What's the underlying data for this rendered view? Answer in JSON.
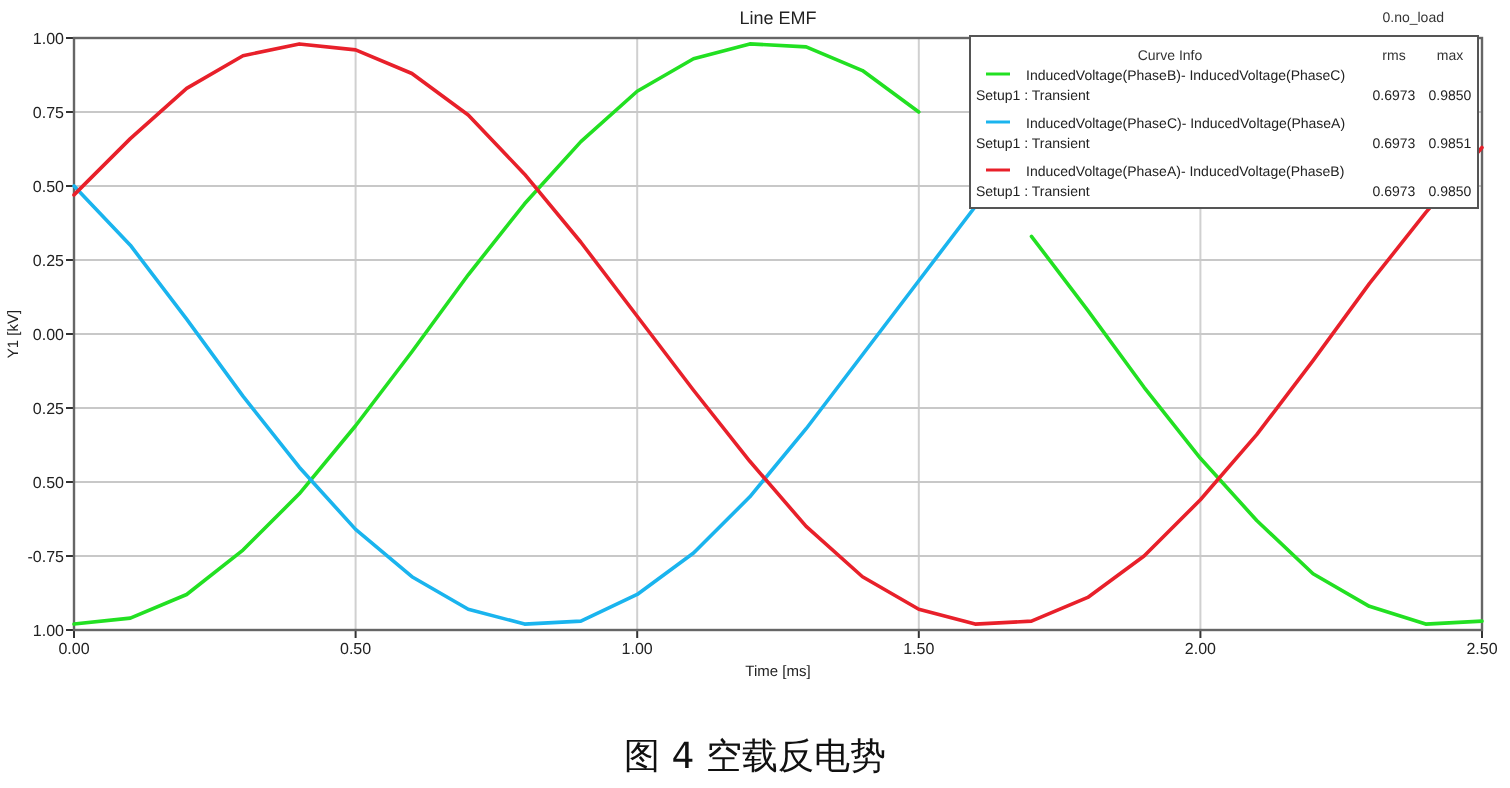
{
  "chart_data": {
    "type": "line",
    "title": "Line EMF",
    "xlabel": "Time [ms]",
    "ylabel": "Y1 [kV]",
    "legend_title": "Curve Info",
    "legend": "top right",
    "grid": true,
    "line_style": "solid",
    "x": [
      0,
      0.1,
      0.2,
      0.3,
      0.4,
      0.5,
      0.6,
      0.7,
      0.8,
      0.9,
      1.0,
      1.1,
      1.2,
      1.3,
      1.4,
      1.5,
      1.6,
      1.7,
      1.8,
      1.9,
      2.0,
      2.1,
      2.2,
      2.3,
      2.4,
      2.5
    ],
    "xlim": [
      0,
      2.5
    ],
    "xticks": [
      {
        "value": 0,
        "label": "0.00"
      },
      {
        "value": 0.5,
        "label": "0.50"
      },
      {
        "value": 1,
        "label": "1.00"
      },
      {
        "value": 1.5,
        "label": "1.50"
      },
      {
        "value": 2,
        "label": "2.00"
      },
      {
        "value": 2.5,
        "label": "2.50"
      }
    ],
    "ylim": [
      -1,
      1
    ],
    "yticks": [
      {
        "value": 1,
        "label": "1.00"
      },
      {
        "value": 0.75,
        "label": "0.75"
      },
      {
        "value": 0.5,
        "label": "0.50"
      },
      {
        "value": 0.25,
        "label": "0.25"
      },
      {
        "value": 0,
        "label": "0.00"
      },
      {
        "value": -0.25,
        "label": "0.25"
      },
      {
        "value": -0.5,
        "label": "0.50"
      },
      {
        "value": -0.75,
        "label": "-0.75"
      },
      {
        "value": -1,
        "label": "1.00"
      }
    ],
    "series": [
      {
        "name": "InducedVoltage(PhaseB)- InducedVoltage(PhaseC)",
        "color": "#22e022",
        "values": [
          -0.98,
          -0.96,
          -0.88,
          -0.73,
          -0.54,
          -0.31,
          -0.06,
          0.2,
          0.44,
          0.65,
          0.82,
          0.93,
          0.98,
          0.97,
          0.89,
          0.75,
          null,
          0.33,
          0.08,
          -0.18,
          -0.42,
          -0.63,
          -0.81,
          -0.92,
          -0.98,
          -0.97
        ]
      },
      {
        "name": "InducedVoltage(PhaseC)- InducedVoltage(PhaseA)",
        "color": "#1ab4ee",
        "values": [
          0.5,
          0.3,
          0.05,
          -0.21,
          -0.45,
          -0.66,
          -0.82,
          -0.93,
          -0.98,
          -0.97,
          -0.88,
          -0.74,
          -0.55,
          -0.32,
          -0.07,
          0.18,
          0.43,
          null,
          null,
          null,
          null,
          null,
          null,
          null,
          null,
          null
        ]
      },
      {
        "name": "InducedVoltage(PhaseA)- InducedVoltage(PhaseB)",
        "color": "#e8202a",
        "values": [
          0.47,
          0.66,
          0.83,
          0.94,
          0.98,
          0.96,
          0.88,
          0.74,
          0.54,
          0.31,
          0.06,
          -0.19,
          -0.43,
          -0.65,
          -0.82,
          -0.93,
          -0.98,
          -0.97,
          -0.89,
          -0.75,
          -0.56,
          -0.34,
          -0.09,
          0.17,
          0.41,
          0.63
        ]
      }
    ],
    "annotations": [
      "rms",
      "max",
      "Setup1 : Transient",
      "0.6973",
      "0.9850",
      "Setup1 : Transient",
      "0.6973",
      "0.9851",
      "Setup1 : Transient",
      "0.6973",
      "0.9850",
      "0.no_load",
      "图 4 空载反电势"
    ]
  }
}
